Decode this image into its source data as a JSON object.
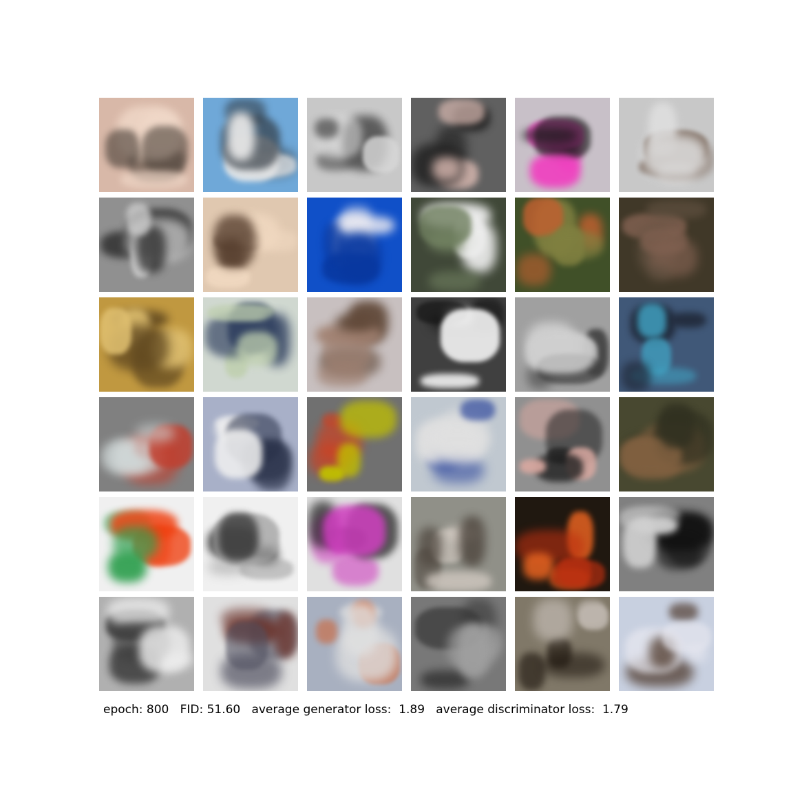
{
  "caption": {
    "text": "epoch: 800   FID: 51.60   average generator loss:  1.89   average discriminator loss:  1.79"
  },
  "grid": {
    "rows": 6,
    "cols": 6,
    "tiles": [
      {
        "bg": "#d8b8a8",
        "fg": "#4a4038",
        "accent": "#f0d8c8"
      },
      {
        "bg": "#6fa8d8",
        "fg": "#303840",
        "accent": "#e8e8e8"
      },
      {
        "bg": "#c8c8c8",
        "fg": "#505050",
        "accent": "#d8d8d8"
      },
      {
        "bg": "#606060",
        "fg": "#202020",
        "accent": "#d8b8b0"
      },
      {
        "bg": "#c8c0c8",
        "fg": "#f040c0",
        "accent": "#181818"
      },
      {
        "bg": "#c8c8c8",
        "fg": "#604838",
        "accent": "#e0e0e0"
      },
      {
        "bg": "#909090",
        "fg": "#202020",
        "accent": "#d0d0d0"
      },
      {
        "bg": "#e0c8b0",
        "fg": "#503828",
        "accent": "#f0d8c0"
      },
      {
        "bg": "#1050c8",
        "fg": "#e8e8f0",
        "accent": "#0838a0"
      },
      {
        "bg": "#404838",
        "fg": "#f0f0f0",
        "accent": "#708060"
      },
      {
        "bg": "#405028",
        "fg": "#c06030",
        "accent": "#808040"
      },
      {
        "bg": "#403828",
        "fg": "#806050",
        "accent": "#605040"
      },
      {
        "bg": "#c09840",
        "fg": "#604820",
        "accent": "#e0c070"
      },
      {
        "bg": "#d0d8d0",
        "fg": "#304060",
        "accent": "#c0d0b0"
      },
      {
        "bg": "#c8c0c0",
        "fg": "#604838",
        "accent": "#a08070"
      },
      {
        "bg": "#404040",
        "fg": "#101010",
        "accent": "#f0f0f0"
      },
      {
        "bg": "#a0a0a0",
        "fg": "#404040",
        "accent": "#d0d0d0"
      },
      {
        "bg": "#405878",
        "fg": "#40a0c0",
        "accent": "#202838"
      },
      {
        "bg": "#808080",
        "fg": "#c04030",
        "accent": "#d0d8d8"
      },
      {
        "bg": "#a8b0c8",
        "fg": "#283048",
        "accent": "#f0f0f0"
      },
      {
        "bg": "#707070",
        "fg": "#d04020",
        "accent": "#c0c000"
      },
      {
        "bg": "#c0c8d0",
        "fg": "#3850a0",
        "accent": "#e0e0e0"
      },
      {
        "bg": "#909090",
        "fg": "#202020",
        "accent": "#d8a8a0"
      },
      {
        "bg": "#484830",
        "fg": "#806040",
        "accent": "#303020"
      },
      {
        "bg": "#f0f0f0",
        "fg": "#f04010",
        "accent": "#30a050"
      },
      {
        "bg": "#f0f0f0",
        "fg": "#202020",
        "accent": "#a0a0a0"
      },
      {
        "bg": "#e0e0e0",
        "fg": "#202020",
        "accent": "#d040c0"
      },
      {
        "bg": "#909088",
        "fg": "#d0c8c0",
        "accent": "#504840"
      },
      {
        "bg": "#201810",
        "fg": "#e06020",
        "accent": "#c03010"
      },
      {
        "bg": "#808080",
        "fg": "#101010",
        "accent": "#d0d0d0"
      },
      {
        "bg": "#b0b0b0",
        "fg": "#404040",
        "accent": "#f0f0f0"
      },
      {
        "bg": "#e0e0e0",
        "fg": "#6a3028",
        "accent": "#505060"
      },
      {
        "bg": "#a8b0c0",
        "fg": "#e0e0e0",
        "accent": "#d06030"
      },
      {
        "bg": "#787878",
        "fg": "#383838",
        "accent": "#a0a0a0"
      },
      {
        "bg": "#807868",
        "fg": "#201810",
        "accent": "#c0b8b0"
      },
      {
        "bg": "#c8d0e0",
        "fg": "#402818",
        "accent": "#e8e8f0"
      }
    ]
  }
}
